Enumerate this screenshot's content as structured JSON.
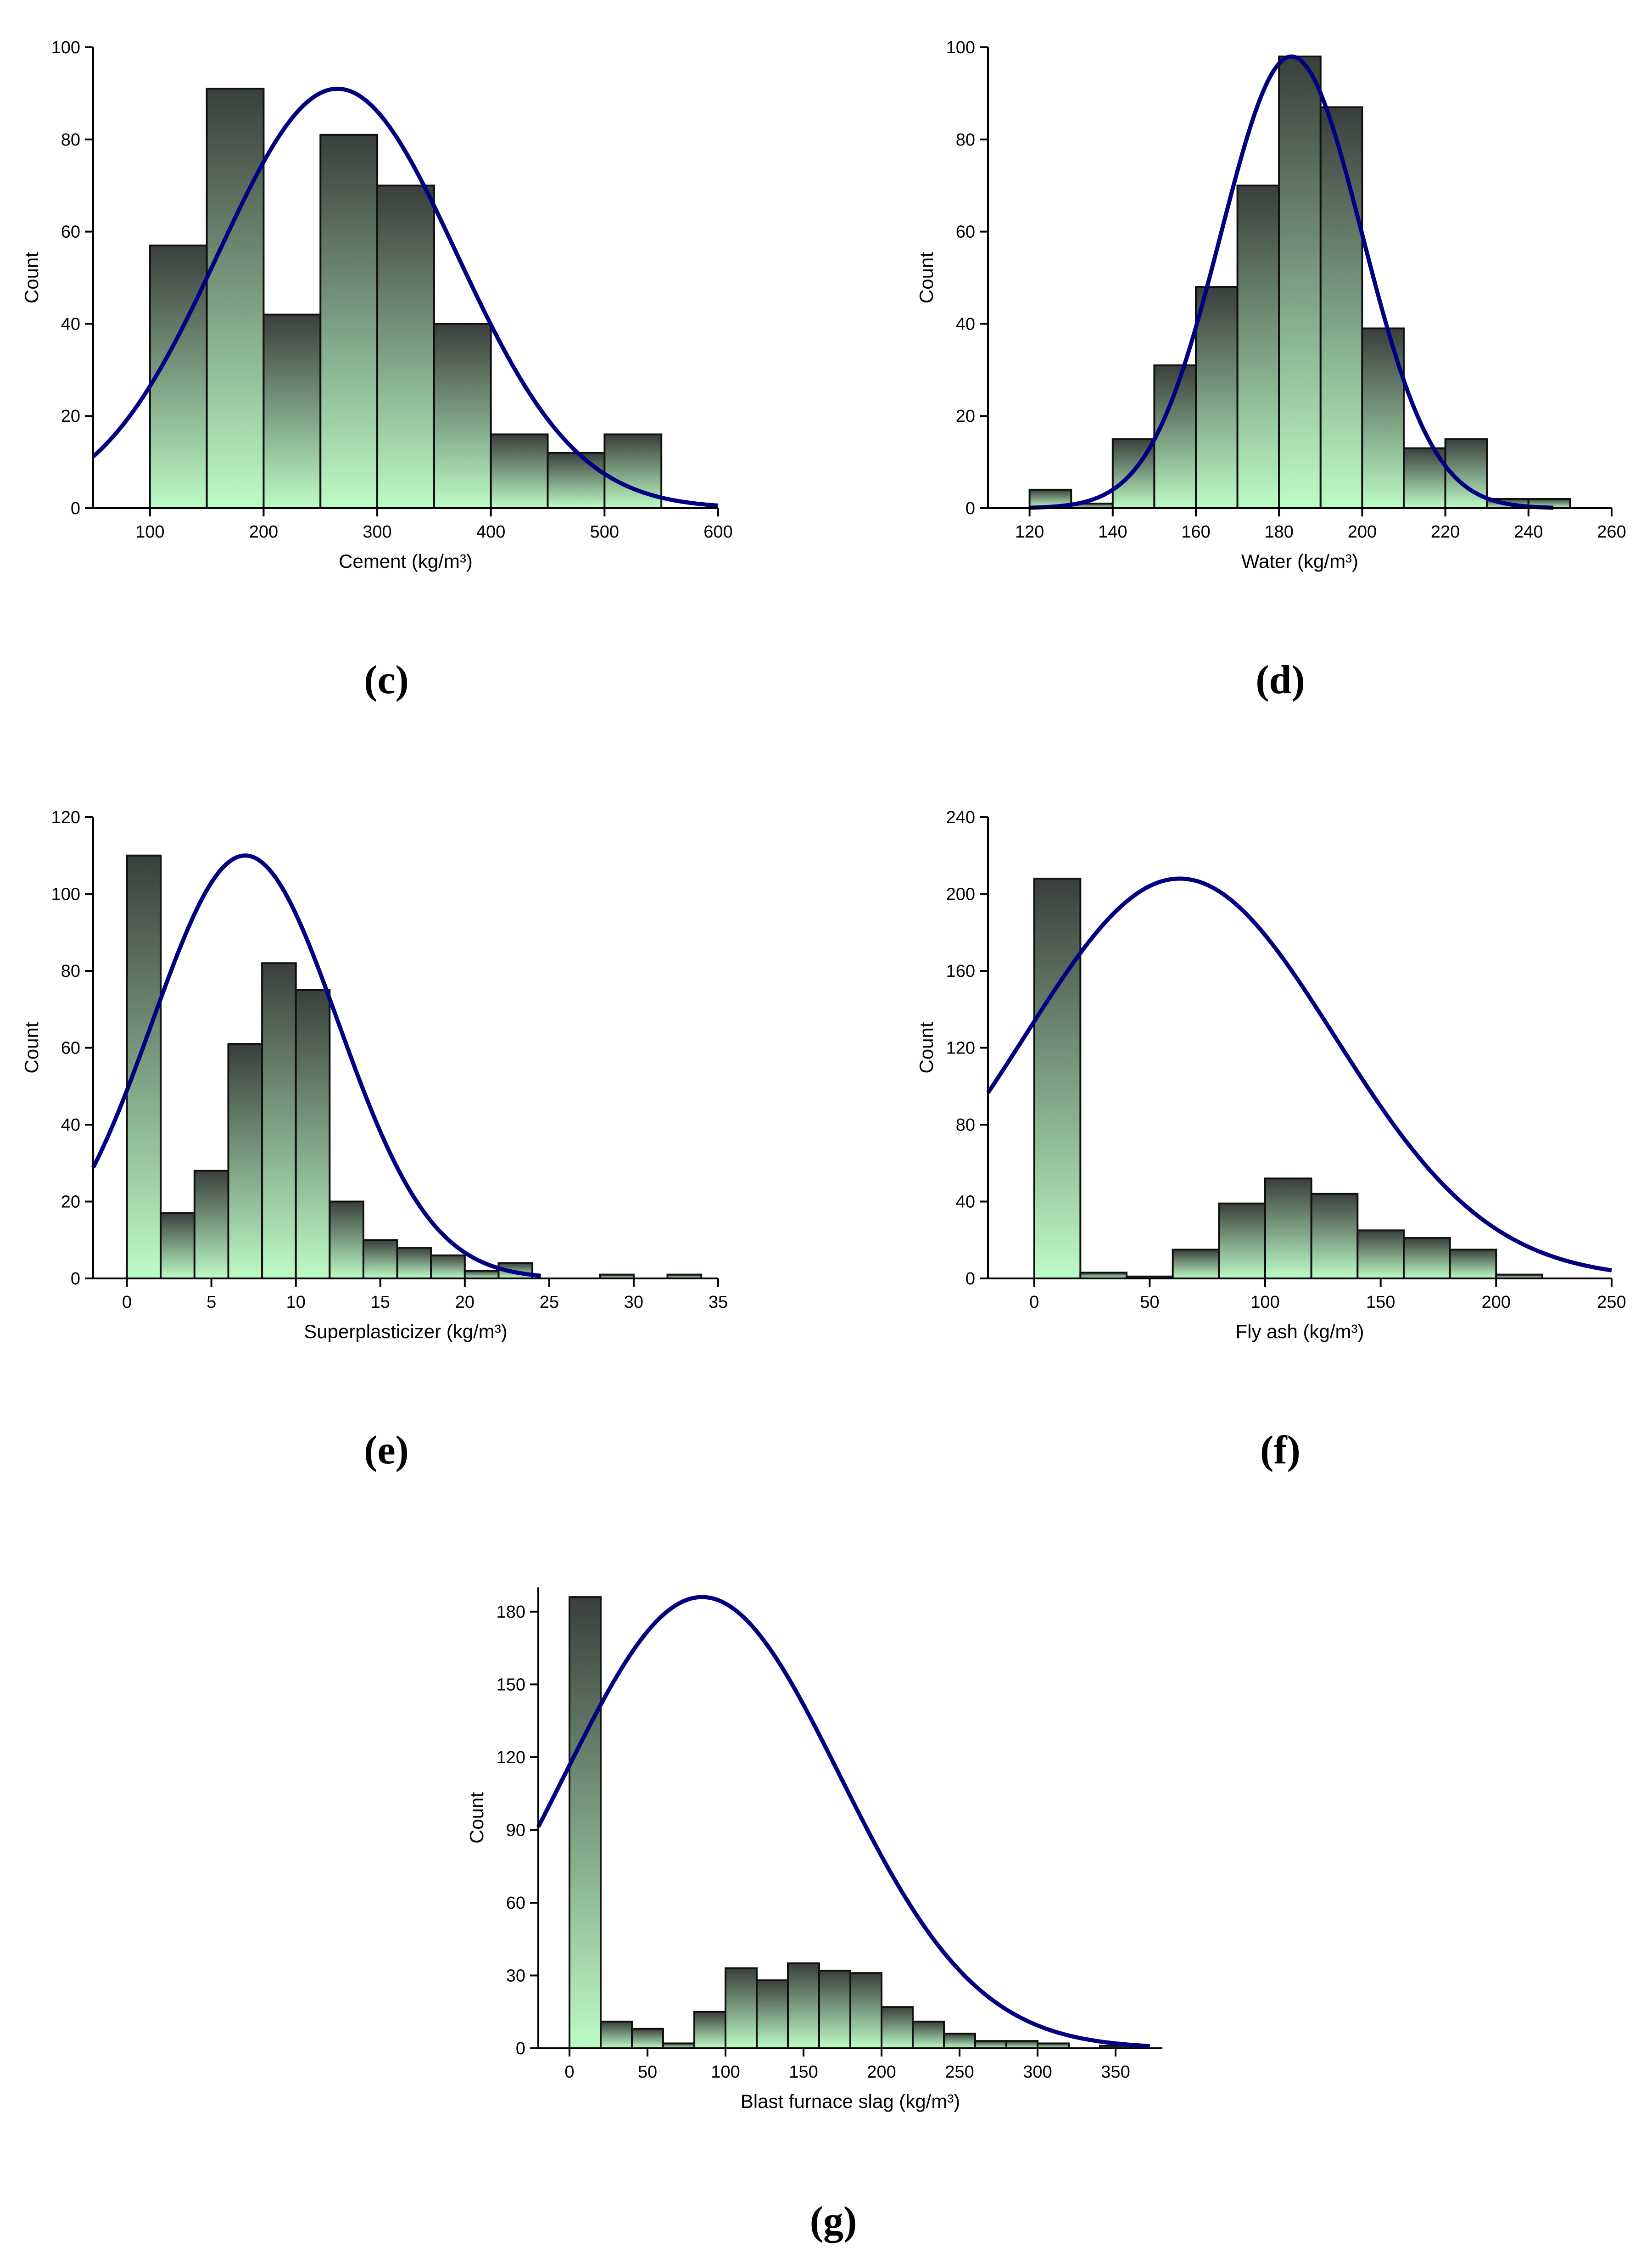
{
  "colors": {
    "bar_top": "#3a3f3c",
    "bar_bottom": "#bdfcc6",
    "bar_stroke": "#111111",
    "curve": "#000080",
    "axis": "#000000"
  },
  "chart_data": [
    {
      "id": "c",
      "caption": "(c)",
      "type": "bar",
      "subtype": "histogram-with-normal-fit",
      "xlabel": "Cement (kg/m³)",
      "ylabel": "Count",
      "xlim": [
        50,
        600
      ],
      "ylim": [
        0,
        100
      ],
      "xticks": [
        100,
        200,
        300,
        400,
        500,
        600
      ],
      "yticks": [
        0,
        20,
        40,
        60,
        80,
        100
      ],
      "bins": [
        [
          100,
          150,
          57
        ],
        [
          150,
          200,
          91
        ],
        [
          200,
          250,
          42
        ],
        [
          250,
          300,
          81
        ],
        [
          300,
          350,
          70
        ],
        [
          350,
          400,
          40
        ],
        [
          400,
          450,
          16
        ],
        [
          450,
          500,
          12
        ],
        [
          500,
          550,
          16
        ]
      ],
      "fit": {
        "mean": 265,
        "sd": 105,
        "peak": 91
      }
    },
    {
      "id": "d",
      "caption": "(d)",
      "type": "bar",
      "subtype": "histogram-with-normal-fit",
      "xlabel": "Water (kg/m³)",
      "ylabel": "Count",
      "xlim": [
        110,
        260
      ],
      "ylim": [
        0,
        100
      ],
      "xticks": [
        120,
        140,
        160,
        180,
        200,
        220,
        240,
        260
      ],
      "yticks": [
        0,
        20,
        40,
        60,
        80,
        100
      ],
      "bins": [
        [
          120,
          130,
          4
        ],
        [
          130,
          140,
          1
        ],
        [
          140,
          150,
          15
        ],
        [
          150,
          160,
          31
        ],
        [
          160,
          170,
          48
        ],
        [
          170,
          180,
          70
        ],
        [
          180,
          190,
          98
        ],
        [
          190,
          200,
          87
        ],
        [
          200,
          210,
          39
        ],
        [
          210,
          220,
          13
        ],
        [
          220,
          230,
          15
        ],
        [
          230,
          240,
          2
        ],
        [
          240,
          250,
          2
        ]
      ],
      "fit": {
        "mean": 183,
        "sd": 17,
        "peak": 98,
        "x_range": [
          120,
          246
        ]
      }
    },
    {
      "id": "e",
      "caption": "(e)",
      "type": "bar",
      "subtype": "histogram-with-normal-fit",
      "xlabel": "Superplasticizer (kg/m³)",
      "ylabel": "Count",
      "xlim": [
        -2,
        35
      ],
      "ylim": [
        0,
        120
      ],
      "xticks": [
        0,
        5,
        10,
        15,
        20,
        25,
        30,
        35
      ],
      "yticks": [
        0,
        20,
        40,
        60,
        80,
        100,
        120
      ],
      "bins": [
        [
          0,
          2,
          110
        ],
        [
          2,
          4,
          17
        ],
        [
          4,
          6,
          28
        ],
        [
          6,
          8,
          61
        ],
        [
          8,
          10,
          82
        ],
        [
          10,
          12,
          75
        ],
        [
          12,
          14,
          20
        ],
        [
          14,
          16,
          10
        ],
        [
          16,
          18,
          8
        ],
        [
          18,
          20,
          6
        ],
        [
          20,
          22,
          2
        ],
        [
          22,
          24,
          4
        ],
        [
          28,
          30,
          1
        ],
        [
          32,
          34,
          1
        ]
      ],
      "fit": {
        "mean": 7,
        "sd": 5.5,
        "peak": 110,
        "x_range": [
          -2,
          24.5
        ]
      }
    },
    {
      "id": "f",
      "caption": "(f)",
      "type": "bar",
      "subtype": "histogram-with-normal-fit",
      "xlabel": "Fly ash (kg/m³)",
      "ylabel": "Count",
      "xlim": [
        -20,
        250
      ],
      "ylim": [
        0,
        240
      ],
      "xticks": [
        0,
        50,
        100,
        150,
        200,
        250
      ],
      "yticks": [
        0,
        40,
        80,
        120,
        160,
        200,
        240
      ],
      "bins": [
        [
          0,
          20,
          208
        ],
        [
          20,
          40,
          3
        ],
        [
          40,
          60,
          1
        ],
        [
          60,
          80,
          15
        ],
        [
          80,
          100,
          39
        ],
        [
          100,
          120,
          52
        ],
        [
          120,
          140,
          44
        ],
        [
          140,
          160,
          25
        ],
        [
          160,
          180,
          21
        ],
        [
          180,
          200,
          15
        ],
        [
          200,
          220,
          2
        ]
      ],
      "fit": {
        "mean": 63,
        "sd": 67,
        "peak": 208
      }
    },
    {
      "id": "g",
      "caption": "(g)",
      "type": "bar",
      "subtype": "histogram-with-normal-fit",
      "xlabel": "Blast furnace slag (kg/m³)",
      "ylabel": "Count",
      "xlim": [
        -20,
        380
      ],
      "ylim": [
        0,
        190
      ],
      "xticks": [
        0,
        50,
        100,
        150,
        200,
        250,
        300,
        350
      ],
      "yticks": [
        0,
        30,
        60,
        90,
        120,
        150,
        180
      ],
      "bins": [
        [
          0,
          20,
          186
        ],
        [
          20,
          40,
          11
        ],
        [
          40,
          60,
          8
        ],
        [
          60,
          80,
          2
        ],
        [
          80,
          100,
          15
        ],
        [
          100,
          120,
          33
        ],
        [
          120,
          140,
          28
        ],
        [
          140,
          160,
          35
        ],
        [
          160,
          180,
          32
        ],
        [
          180,
          200,
          31
        ],
        [
          200,
          220,
          17
        ],
        [
          220,
          240,
          11
        ],
        [
          240,
          260,
          6
        ],
        [
          260,
          280,
          3
        ],
        [
          280,
          300,
          3
        ],
        [
          300,
          320,
          2
        ],
        [
          340,
          360,
          1
        ]
      ],
      "fit": {
        "mean": 85,
        "sd": 88,
        "peak": 186,
        "x_range": [
          -20,
          372
        ]
      }
    }
  ]
}
